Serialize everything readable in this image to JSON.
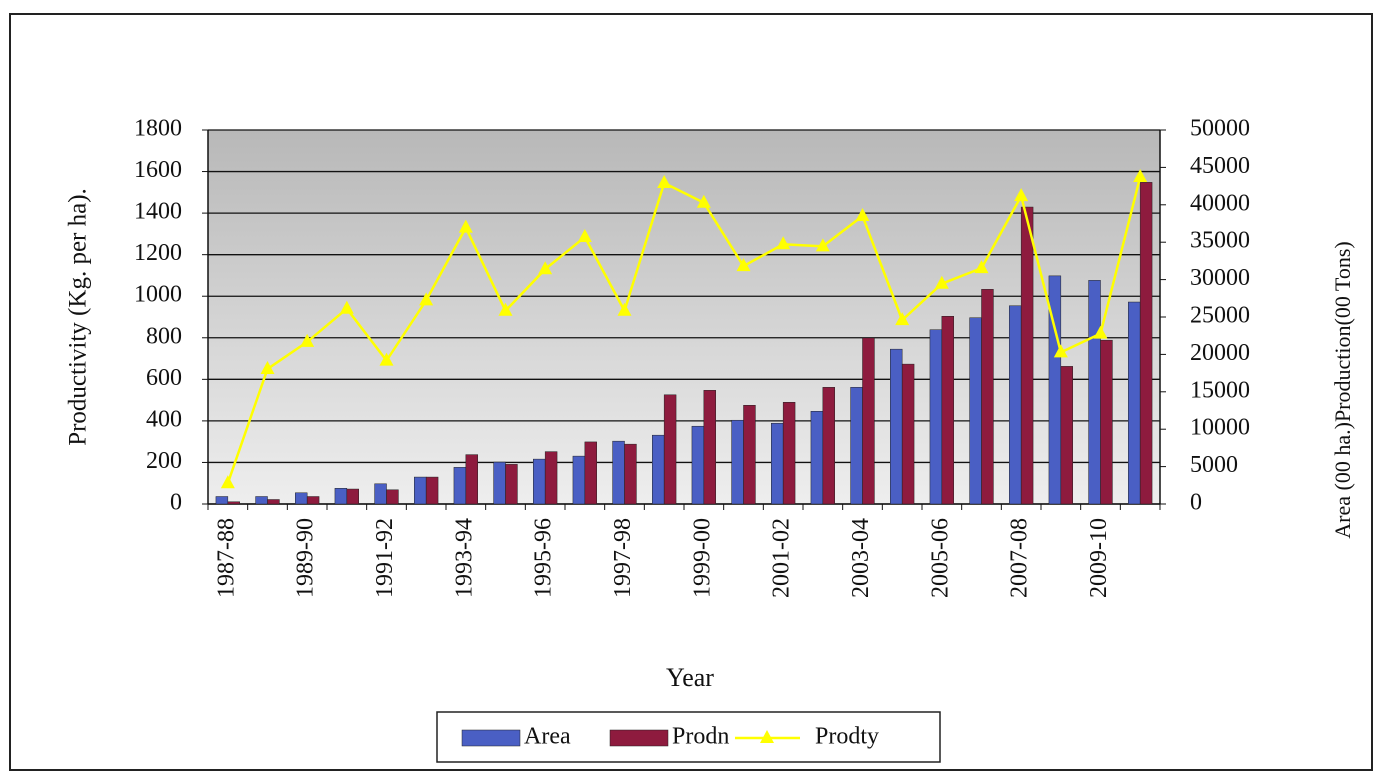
{
  "chart_data": {
    "type": "bar-line",
    "categories": [
      "1987-88",
      null,
      "1989-90",
      null,
      "1991-92",
      null,
      "1993-94",
      null,
      "1995-96",
      null,
      "1997-98",
      null,
      "1999-00",
      null,
      "2001-02",
      null,
      "2003-04",
      null,
      "2005-06",
      null,
      "2007-08",
      null,
      "2009-10",
      null
    ],
    "series": [
      {
        "name": "Area",
        "color": "#4a5fc4",
        "axis": "y2",
        "kind": "bar",
        "values": [
          1000,
          1000,
          1500,
          2100,
          2700,
          3600,
          4900,
          5600,
          6000,
          6400,
          8400,
          9200,
          10400,
          11200,
          10800,
          12400,
          15600,
          20700,
          23300,
          24900,
          26500,
          30500,
          29900,
          27000
        ]
      },
      {
        "name": "Prodn",
        "color": "#8e1b3e",
        "axis": "y2",
        "kind": "bar",
        "values": [
          300,
          600,
          1000,
          2000,
          1900,
          3600,
          6600,
          5300,
          7000,
          8300,
          8000,
          14600,
          15200,
          13200,
          13600,
          15600,
          22200,
          18700,
          25100,
          28700,
          39700,
          18400,
          21900,
          43000
        ]
      },
      {
        "name": "Prodty",
        "color": "#ffff00",
        "axis": "y",
        "kind": "line",
        "values": [
          100,
          650,
          780,
          940,
          690,
          980,
          1330,
          930,
          1130,
          1285,
          930,
          1545,
          1450,
          1145,
          1250,
          1240,
          1386,
          885,
          1060,
          1135,
          1482,
          730,
          820,
          1574
        ]
      }
    ],
    "xlabel": "Year",
    "ylabel": "Productivity (Kg. per ha).",
    "y2label": "Area (00 ha.)Production(00 Tons)",
    "ylim": [
      0,
      1800
    ],
    "yticks": [
      0,
      200,
      400,
      600,
      800,
      1000,
      1200,
      1400,
      1600,
      1800
    ],
    "y2lim": [
      0,
      50000
    ],
    "y2ticks": [
      0,
      5000,
      10000,
      15000,
      20000,
      25000,
      30000,
      35000,
      40000,
      45000,
      50000
    ],
    "grid": true,
    "legend": "bottom"
  }
}
